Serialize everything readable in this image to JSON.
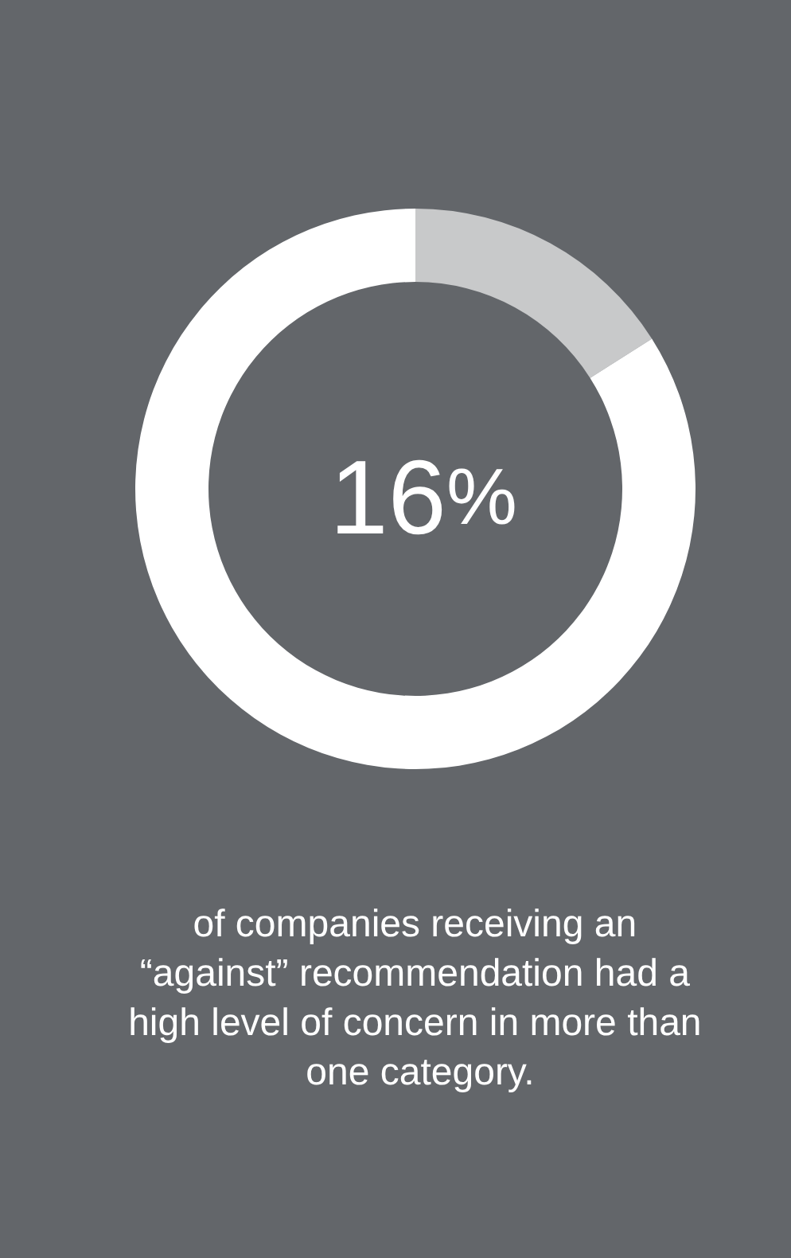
{
  "chart_data": {
    "type": "donut",
    "title": "16%",
    "categories": [
      null,
      null
    ],
    "values": [
      16,
      84
    ],
    "colors": [
      "#c8c9ca",
      "#ffffff"
    ],
    "annotations": [
      "of companies receiving an “against” recommendation had a high level of concern in more than one category."
    ]
  }
}
